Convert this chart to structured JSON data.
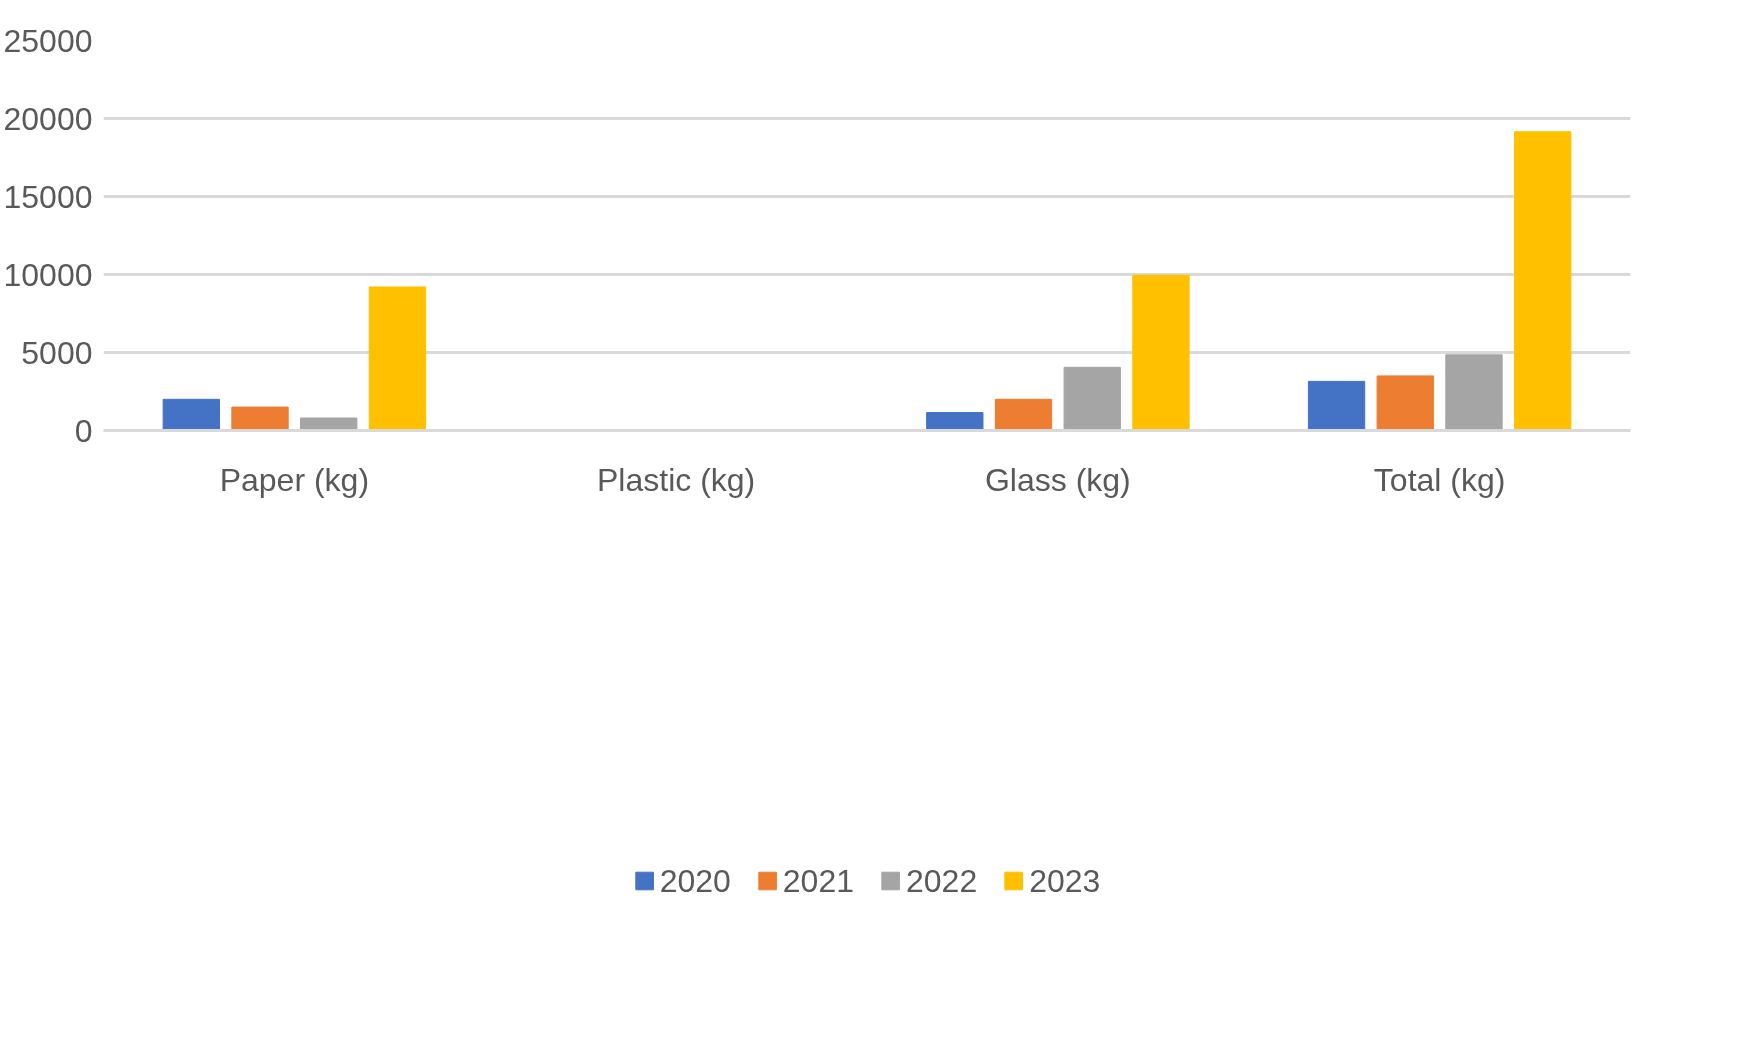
{
  "chart_data": {
    "type": "bar",
    "categories": [
      "Paper (kg)",
      "Plastic (kg)",
      "Glass (kg)",
      "Total (kg)"
    ],
    "series": [
      {
        "name": "2020",
        "color": "#4472c4",
        "values": [
          2000,
          0,
          1150,
          3150
        ]
      },
      {
        "name": "2021",
        "color": "#ed7d31",
        "values": [
          1500,
          0,
          2000,
          3500
        ]
      },
      {
        "name": "2022",
        "color": "#a5a5a5",
        "values": [
          800,
          0,
          4050,
          4850
        ]
      },
      {
        "name": "2023",
        "color": "#ffc000",
        "values": [
          9200,
          0,
          9950,
          19150
        ]
      }
    ],
    "ylim": [
      0,
      25000
    ],
    "yticks": [
      0,
      5000,
      10000,
      15000,
      20000,
      25000
    ],
    "grid": "y",
    "legend": "bottom"
  }
}
